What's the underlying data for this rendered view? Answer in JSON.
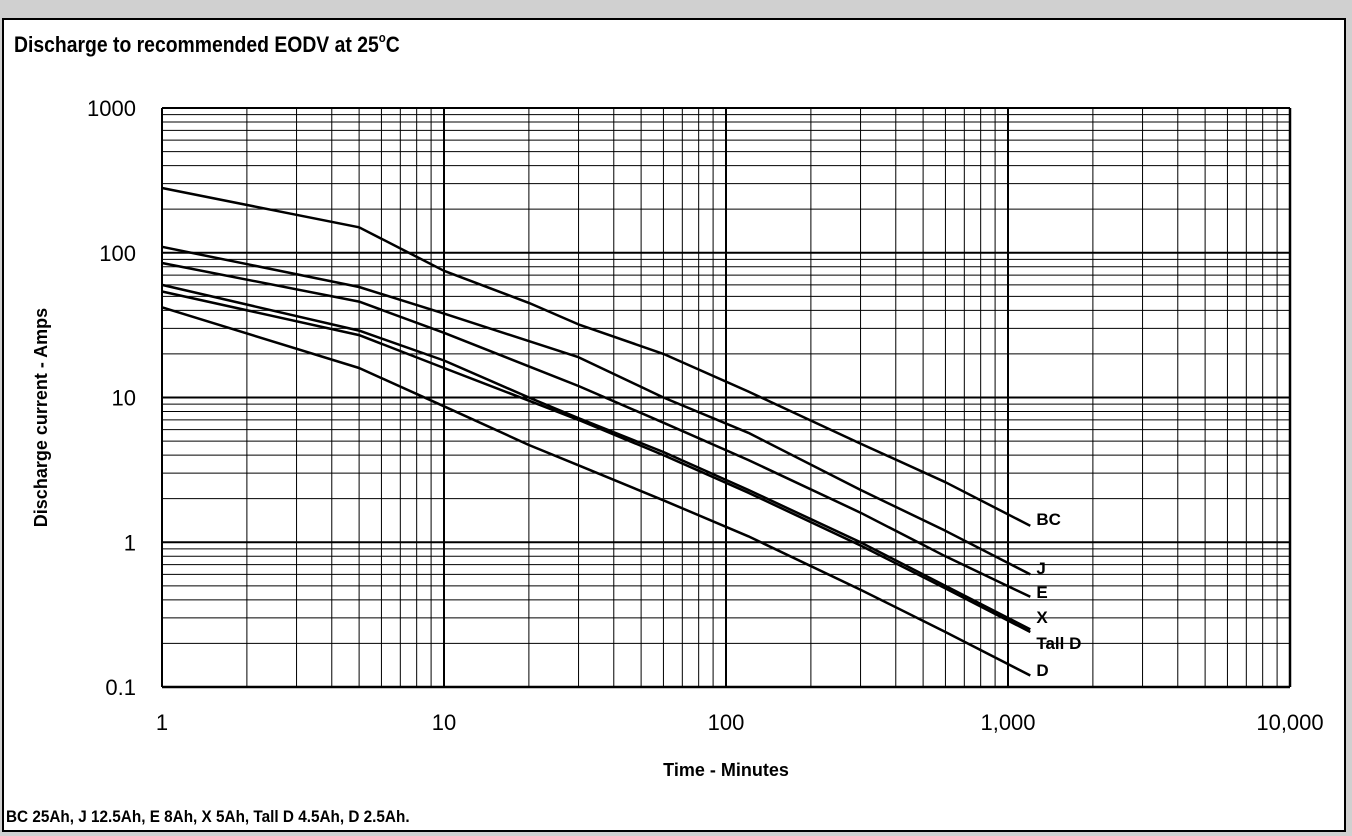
{
  "chart_data": {
    "type": "line",
    "title": "Discharge to recommended EODV at 25",
    "title_unit": "C",
    "title_degree": "o",
    "xlabel": "Time - Minutes",
    "ylabel": "Discharge current - Amps",
    "x_scale": "log",
    "y_scale": "log",
    "xlim": [
      1,
      10000
    ],
    "ylim": [
      0.1,
      1000
    ],
    "x_ticks": [
      1,
      10,
      100,
      1000,
      10000
    ],
    "x_tick_labels": [
      "1",
      "10",
      "100",
      "1,000",
      "10,000"
    ],
    "y_ticks": [
      0.1,
      1,
      10,
      100,
      1000
    ],
    "y_tick_labels": [
      "0.1",
      "1",
      "10",
      "100",
      "1000"
    ],
    "grid": true,
    "line_color": "#000000",
    "series": [
      {
        "name": "BC",
        "x": [
          1,
          5,
          10,
          20,
          30,
          60,
          120,
          300,
          600,
          1200
        ],
        "y": [
          280,
          150,
          75,
          45,
          32,
          20,
          11,
          4.8,
          2.6,
          1.3
        ]
      },
      {
        "name": "J",
        "x": [
          1,
          5,
          10,
          30,
          60,
          120,
          300,
          600,
          1200
        ],
        "y": [
          110,
          58,
          38,
          19,
          10,
          5.7,
          2.3,
          1.2,
          0.6
        ]
      },
      {
        "name": "E",
        "x": [
          1,
          5,
          10,
          30,
          60,
          120,
          300,
          600,
          1200
        ],
        "y": [
          85,
          46,
          28,
          12,
          6.7,
          3.7,
          1.6,
          0.8,
          0.42
        ]
      },
      {
        "name": "X",
        "x": [
          1,
          5,
          10,
          20,
          30,
          60,
          120,
          300,
          600,
          1200
        ],
        "y": [
          60,
          29,
          18,
          10,
          7.2,
          4.2,
          2.3,
          1.0,
          0.5,
          0.25
        ]
      },
      {
        "name": "Tall D",
        "x": [
          1,
          5,
          10,
          20,
          30,
          60,
          120,
          300,
          600,
          1200
        ],
        "y": [
          54,
          27,
          16,
          9.5,
          7.0,
          4.0,
          2.2,
          0.95,
          0.48,
          0.24
        ]
      },
      {
        "name": "D",
        "x": [
          1,
          5,
          10,
          20,
          30,
          60,
          120,
          300,
          600,
          1200
        ],
        "y": [
          42,
          16,
          8.7,
          4.7,
          3.4,
          1.95,
          1.1,
          0.47,
          0.24,
          0.12
        ]
      }
    ],
    "footnote": "BC 25Ah, J 12.5Ah, E 8Ah, X 5Ah, Tall D 4.5Ah, D 2.5Ah."
  }
}
